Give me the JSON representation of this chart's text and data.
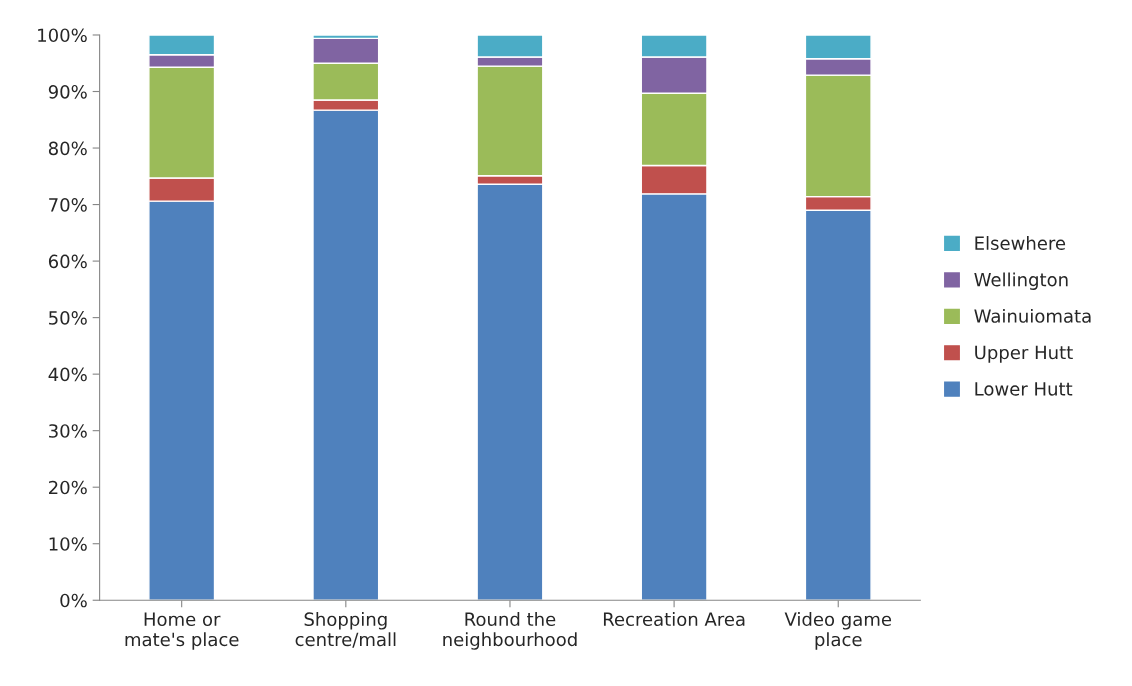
{
  "chart_data": {
    "type": "bar",
    "stacked": true,
    "categories": [
      "Home or\nmate's place",
      "Shopping\ncentre/mall",
      "Round the\nneighbourhood",
      "Recreation Area",
      "Video game\nplace"
    ],
    "series": [
      {
        "name": "Lower Hutt",
        "color": "#4f81bd",
        "values": [
          70.6,
          86.7,
          73.6,
          71.9,
          69.0
        ]
      },
      {
        "name": "Upper Hutt",
        "color": "#c0504d",
        "values": [
          4.1,
          1.8,
          1.5,
          5.0,
          2.4
        ]
      },
      {
        "name": "Wainuiomata",
        "color": "#9bbb59",
        "values": [
          19.6,
          6.5,
          19.4,
          12.8,
          21.5
        ]
      },
      {
        "name": "Wellington",
        "color": "#8064a2",
        "values": [
          2.2,
          4.4,
          1.6,
          6.4,
          2.9
        ]
      },
      {
        "name": "Elsewhere",
        "color": "#4bacc6",
        "values": [
          3.5,
          0.6,
          3.9,
          3.9,
          4.2
        ]
      }
    ],
    "ylim": [
      0,
      100
    ],
    "yticks": [
      {
        "value": 0,
        "label": "0%"
      },
      {
        "value": 10,
        "label": "10%"
      },
      {
        "value": 20,
        "label": "20%"
      },
      {
        "value": 30,
        "label": "30%"
      },
      {
        "value": 40,
        "label": "40%"
      },
      {
        "value": 50,
        "label": "50%"
      },
      {
        "value": 60,
        "label": "60%"
      },
      {
        "value": 70,
        "label": "70%"
      },
      {
        "value": 80,
        "label": "80%"
      },
      {
        "value": 90,
        "label": "90%"
      },
      {
        "value": 100,
        "label": "100%"
      }
    ],
    "grid": false,
    "legend": "right"
  }
}
